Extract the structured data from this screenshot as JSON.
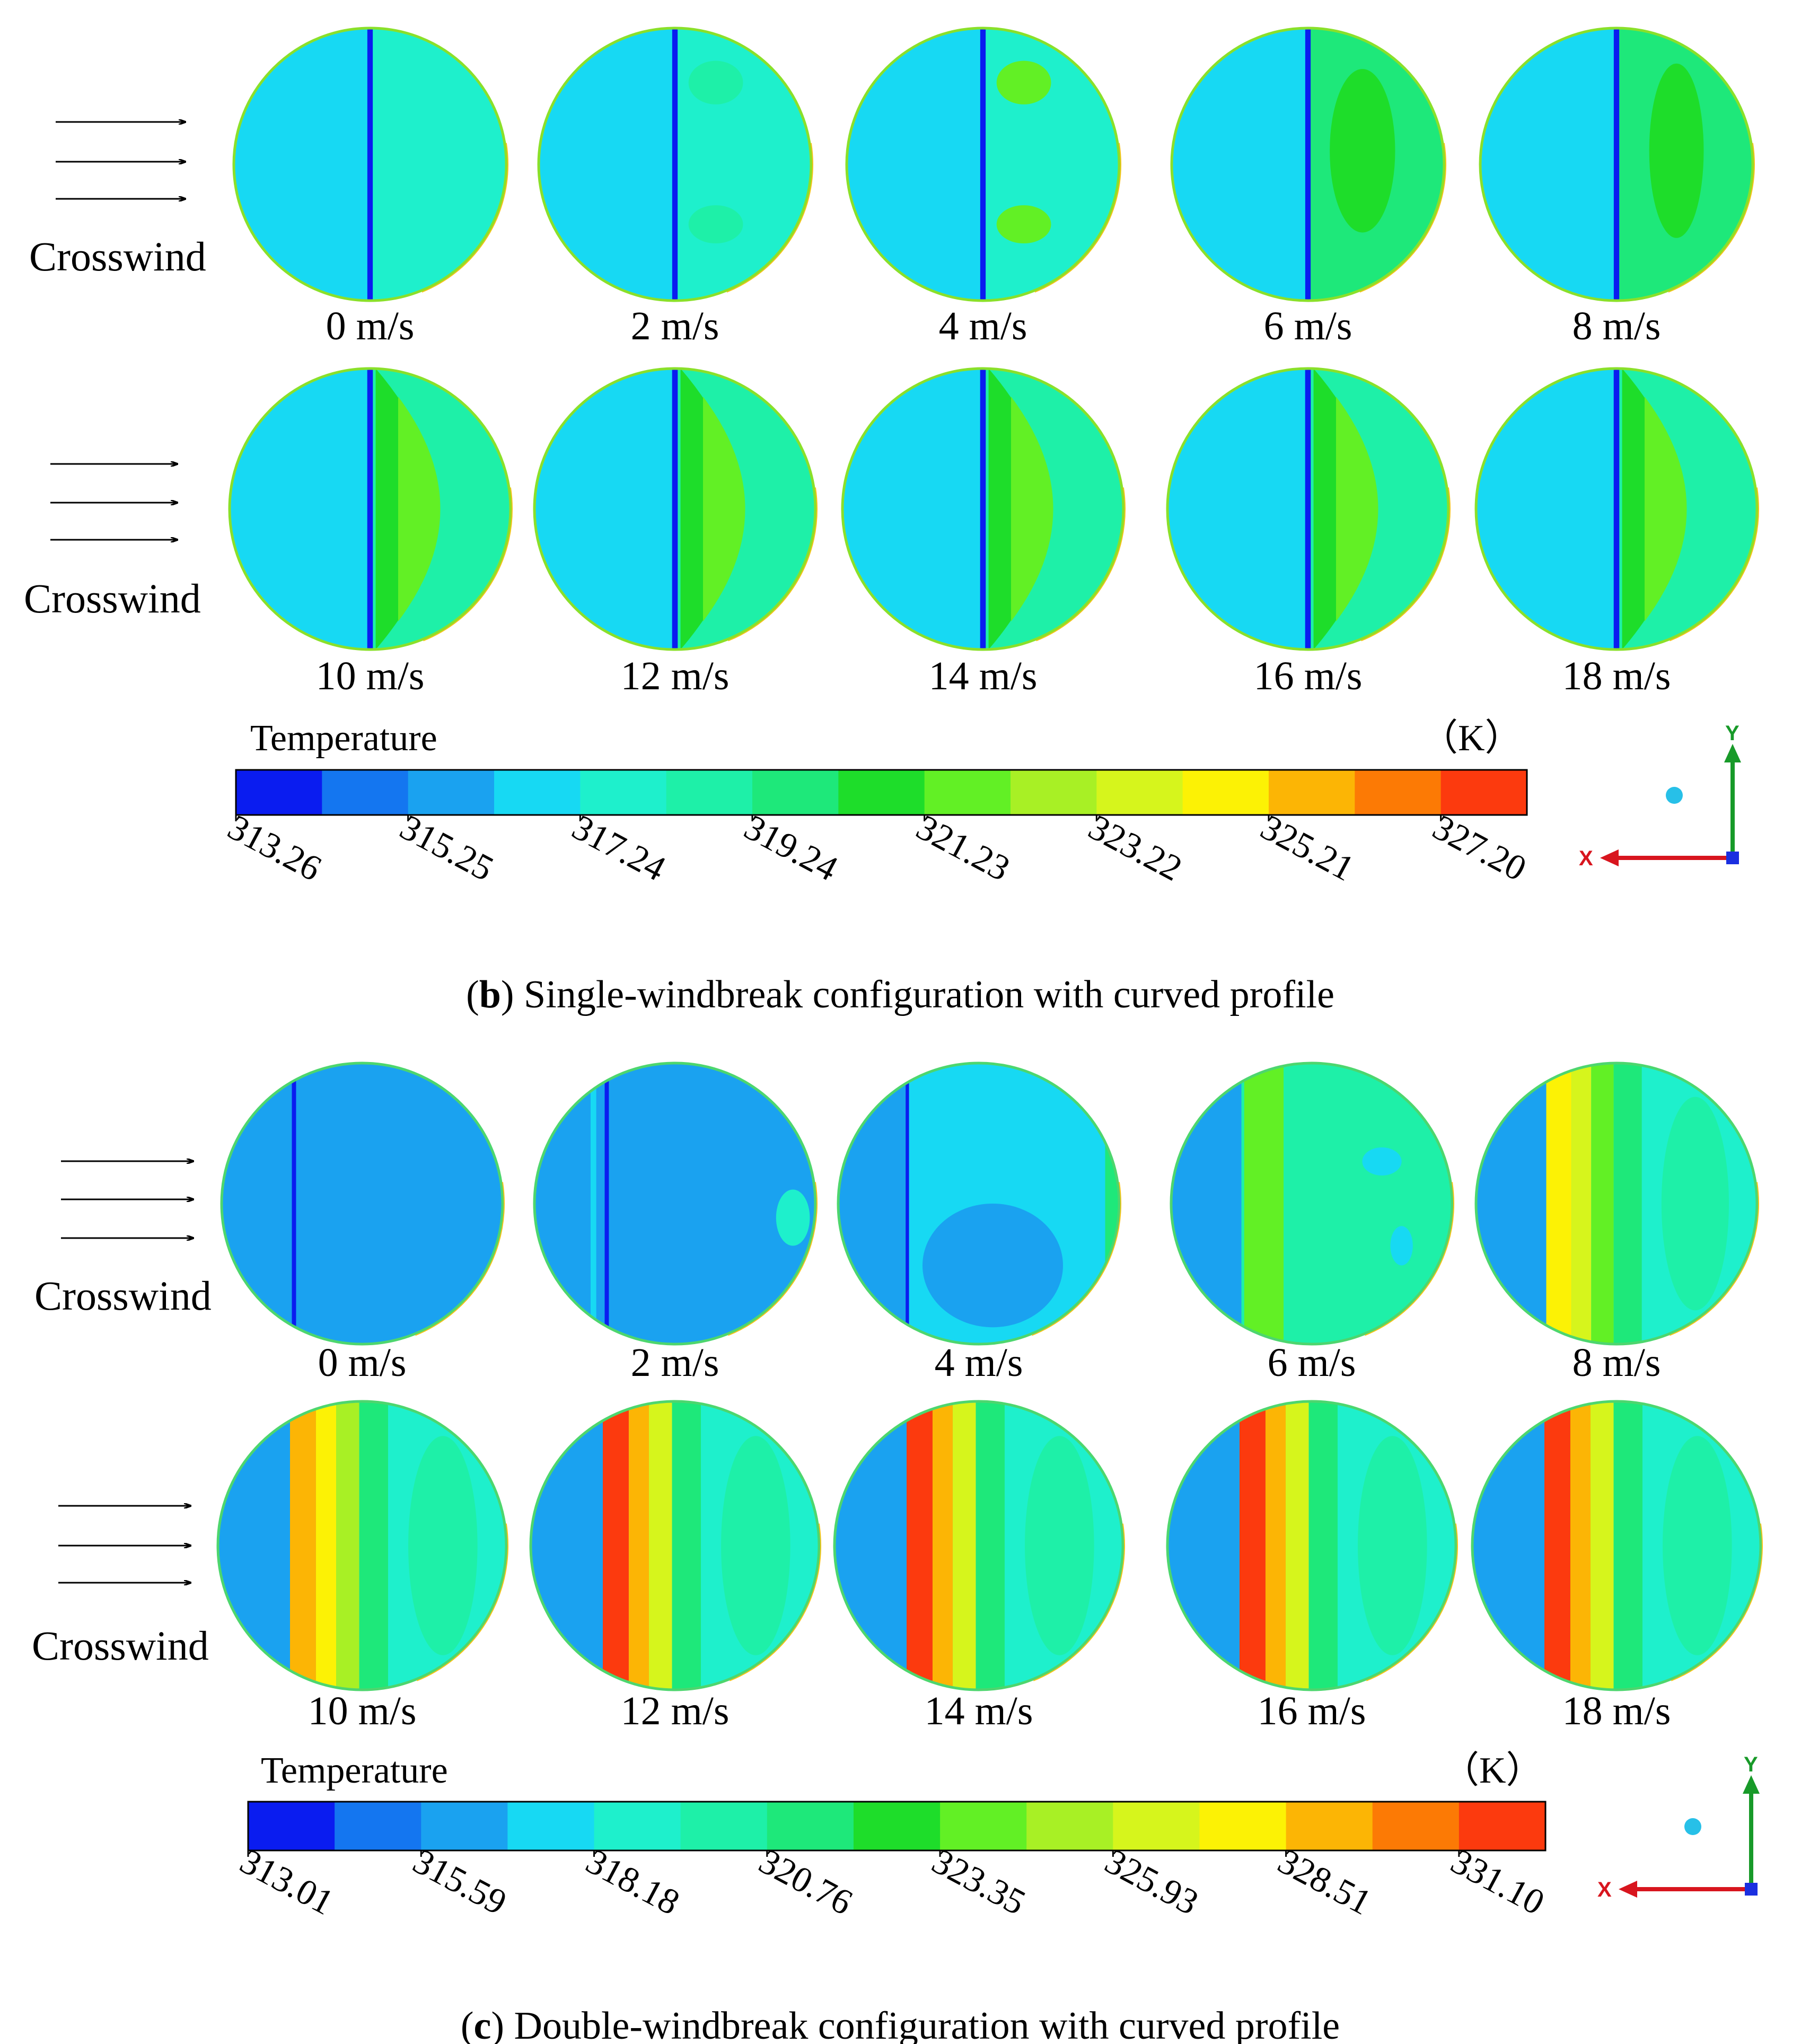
{
  "colormap": [
    "#0a1cf0",
    "#1476f0",
    "#1aa2f0",
    "#17d9f3",
    "#1ef0cc",
    "#1ef0a8",
    "#1ee87a",
    "#1edd2a",
    "#62f025",
    "#a8f025",
    "#d6f51c",
    "#fcf205",
    "#fcb505",
    "#fc7a05",
    "#fc3a0e"
  ],
  "axis_triad": {
    "x_label": "X",
    "y_label": "Y"
  },
  "panels": [
    {
      "id": "b",
      "caption_letter": "b",
      "caption_text": ") Single-windbreak configuration with curved profile",
      "caption_open": "(",
      "rows": [
        {
          "wind_label": "Crosswind",
          "plots": [
            {
              "speed": "0 m/s",
              "mode": "b0"
            },
            {
              "speed": "2 m/s",
              "mode": "b1"
            },
            {
              "speed": "4 m/s",
              "mode": "b2"
            },
            {
              "speed": "6 m/s",
              "mode": "b3"
            },
            {
              "speed": "8 m/s",
              "mode": "b4"
            }
          ]
        },
        {
          "wind_label": "Crosswind",
          "plots": [
            {
              "speed": "10 m/s",
              "mode": "b5"
            },
            {
              "speed": "12 m/s",
              "mode": "b5"
            },
            {
              "speed": "14 m/s",
              "mode": "b5"
            },
            {
              "speed": "16 m/s",
              "mode": "b5"
            },
            {
              "speed": "18 m/s",
              "mode": "b5"
            }
          ]
        }
      ],
      "colorbar": {
        "title": "Temperature",
        "unit": "（K）",
        "ticks": [
          "313.26",
          "315.25",
          "317.24",
          "319.24",
          "321.23",
          "323.22",
          "325.21",
          "327.20"
        ]
      }
    },
    {
      "id": "c",
      "caption_letter": "c",
      "caption_text": ") Double-windbreak configuration with curved profile",
      "caption_open": "(",
      "rows": [
        {
          "wind_label": "Crosswind",
          "plots": [
            {
              "speed": "0 m/s",
              "mode": "c0"
            },
            {
              "speed": "2 m/s",
              "mode": "c1"
            },
            {
              "speed": "4 m/s",
              "mode": "c2"
            },
            {
              "speed": "6 m/s",
              "mode": "c3"
            },
            {
              "speed": "8 m/s",
              "mode": "c4"
            }
          ]
        },
        {
          "wind_label": "Crosswind",
          "plots": [
            {
              "speed": "10 m/s",
              "mode": "c5"
            },
            {
              "speed": "12 m/s",
              "mode": "c6"
            },
            {
              "speed": "14 m/s",
              "mode": "c6"
            },
            {
              "speed": "16 m/s",
              "mode": "c6"
            },
            {
              "speed": "18 m/s",
              "mode": "c6"
            }
          ]
        }
      ],
      "colorbar": {
        "title": "Temperature",
        "unit": "（K）",
        "ticks": [
          "313.01",
          "315.59",
          "318.18",
          "320.76",
          "323.35",
          "325.93",
          "328.51",
          "331.10"
        ]
      }
    }
  ]
}
